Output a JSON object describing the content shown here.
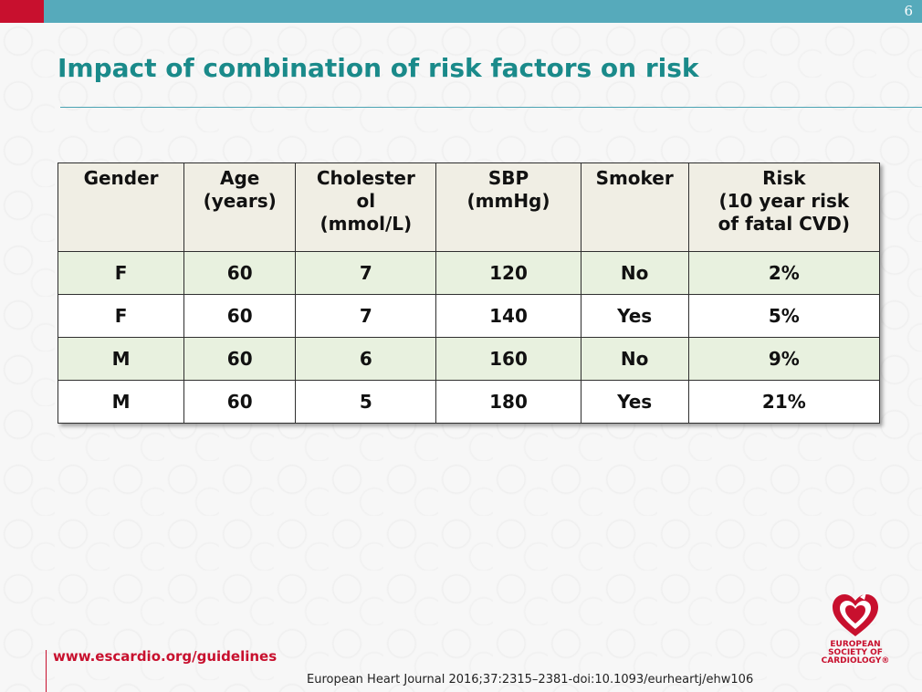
{
  "header": {
    "page_number": "6"
  },
  "title": "Impact of combination of risk factors on risk",
  "table": {
    "headers": [
      [
        "Gender"
      ],
      [
        "Age",
        "(years)"
      ],
      [
        "Cholester",
        "ol",
        "(mmol/L)"
      ],
      [
        "SBP",
        "(mmHg)"
      ],
      [
        "Smoker"
      ],
      [
        "Risk",
        "(10 year risk",
        "of fatal CVD)"
      ]
    ],
    "rows": [
      [
        "F",
        "60",
        "7",
        "120",
        "No",
        "2%"
      ],
      [
        "F",
        "60",
        "7",
        "140",
        "Yes",
        "5%"
      ],
      [
        "M",
        "60",
        "6",
        "160",
        "No",
        "9%"
      ],
      [
        "M",
        "60",
        "5",
        "180",
        "Yes",
        "21%"
      ]
    ]
  },
  "footer": {
    "url": "www.escardio.org/guidelines",
    "citation": "European Heart Journal 2016;37:2315–2381-doi:10.1093/eurheartj/ehw106",
    "logo_text": [
      "EUROPEAN",
      "SOCIETY OF",
      "CARDIOLOGY®"
    ]
  },
  "colors": {
    "top_bar": "#56aabb",
    "brand_red": "#c8102e",
    "title": "#1a8a8a",
    "header_row": "#f0eee4",
    "alt_row": "#e8f1df"
  },
  "icons": {
    "logo": "esc-heart-logo-icon"
  }
}
